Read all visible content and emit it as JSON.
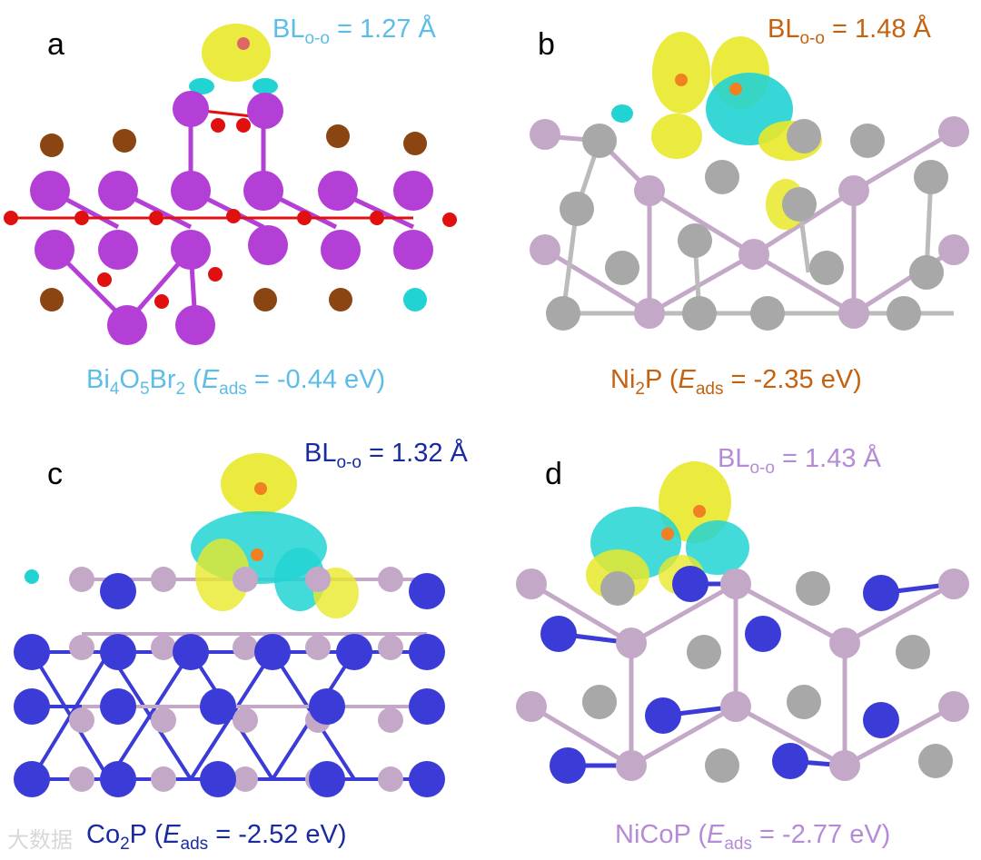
{
  "colors": {
    "panel_a": "#5bbde8",
    "panel_b": "#c4620f",
    "panel_c": "#1a2ba0",
    "panel_d": "#b58ad6",
    "bi": "#b43fd6",
    "o": "#e01010",
    "br": "#8b4513",
    "ni": "#a8a8a8",
    "p": "#c4a8c8",
    "co": "#3b3bd8",
    "charge_yellow": "#e8e82a",
    "charge_cyan": "#22d3d3"
  },
  "panels": [
    {
      "letter": "a",
      "bl_main": "BL",
      "bl_sub": "o-o",
      "bl_value": " = 1.27 Å",
      "cap_pre": "Bi",
      "cap_s1": "4",
      "cap_mid1": "O",
      "cap_s2": "5",
      "cap_mid2": "Br",
      "cap_s3": "2",
      "cap_open": " (",
      "cap_e": "E",
      "cap_esub": "ads",
      "cap_val": " = -0.44 eV)"
    },
    {
      "letter": "b",
      "bl_main": "BL",
      "bl_sub": "o-o",
      "bl_value": " = 1.48 Å",
      "cap_pre": "Ni",
      "cap_s1": "2",
      "cap_mid1": "P",
      "cap_open": " (",
      "cap_e": "E",
      "cap_esub": "ads",
      "cap_val": " = -2.35 eV)"
    },
    {
      "letter": "c",
      "bl_main": "BL",
      "bl_sub": "o-o",
      "bl_value": " = 1.32 Å",
      "cap_pre": "Co",
      "cap_s1": "2",
      "cap_mid1": "P",
      "cap_open": " (",
      "cap_e": "E",
      "cap_esub": "ads",
      "cap_val": " = -2.52 eV)"
    },
    {
      "letter": "d",
      "bl_main": "BL",
      "bl_sub": "o-o",
      "bl_value": " = 1.43 Å",
      "cap_pre": "NiCoP",
      "cap_open": " (",
      "cap_e": "E",
      "cap_esub": "ads",
      "cap_val": " = -2.77 eV)"
    }
  ],
  "watermark": "大数据"
}
